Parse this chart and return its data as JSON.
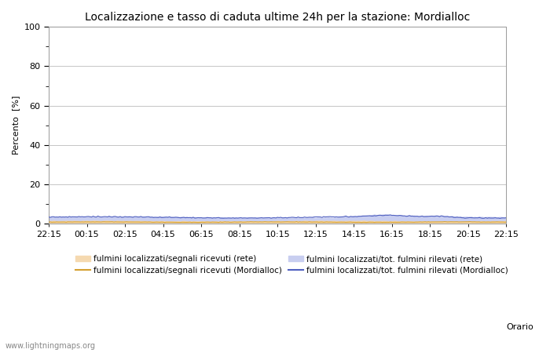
{
  "title": "Localizzazione e tasso di caduta ultime 24h per la stazione: Mordialloc",
  "ylabel": "Percento  [%]",
  "xlabel": "Orario",
  "watermark": "www.lightningmaps.org",
  "xtick_labels": [
    "22:15",
    "00:15",
    "02:15",
    "04:15",
    "06:15",
    "08:15",
    "10:15",
    "12:15",
    "14:15",
    "16:15",
    "18:15",
    "20:15",
    "22:15"
  ],
  "ytick_major": [
    0,
    20,
    40,
    60,
    80,
    100
  ],
  "ytick_minor": [
    10,
    30,
    50,
    70,
    90
  ],
  "ylim": [
    0,
    100
  ],
  "n_points": 289,
  "fill_rete_segnali_color": "#f5d9b0",
  "fill_rete_tot_color": "#c8cef0",
  "line_mordialloc_segnali_color": "#d4a030",
  "line_mordialloc_tot_color": "#5060c0",
  "legend_labels": [
    "fulmini localizzati/segnali ricevuti (rete)",
    "fulmini localizzati/segnali ricevuti (Mordialloc)",
    "fulmini localizzati/tot. fulmini rilevati (rete)",
    "fulmini localizzati/tot. fulmini rilevati (Mordialloc)"
  ],
  "background_color": "#ffffff",
  "grid_color": "#bbbbbb"
}
